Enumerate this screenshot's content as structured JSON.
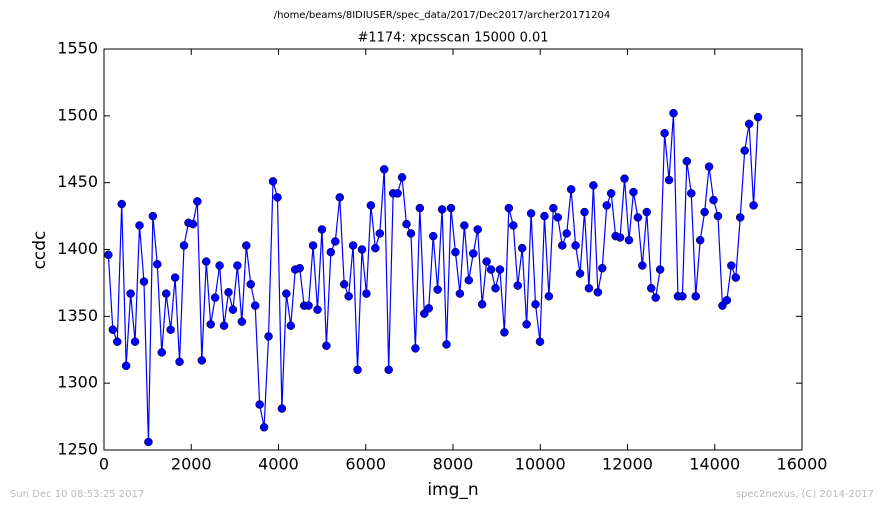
{
  "chart_data": {
    "type": "line",
    "suptitle": "/home/beams/8IDIUSER/spec_data/2017/Dec2017/archer20171204",
    "title": "#1174: xpcsscan 15000 0.01",
    "xlabel": "img_n",
    "ylabel": "ccdc",
    "footnote_left": "Sun Dec 10 08:53:25 2017",
    "footnote_right": "spec2nexus, (C) 2014-2017",
    "color": "#0000ff",
    "marker": "circle",
    "grid": false,
    "xlim": [
      0,
      16000
    ],
    "xticks": [
      0,
      2000,
      4000,
      6000,
      8000,
      10000,
      12000,
      14000,
      16000
    ],
    "ylim": [
      1250,
      1550
    ],
    "yticks": [
      1250,
      1300,
      1350,
      1400,
      1450,
      1500,
      1550
    ],
    "x": [
      100,
      202,
      304,
      406,
      508,
      610,
      712,
      814,
      916,
      1018,
      1120,
      1222,
      1324,
      1426,
      1528,
      1630,
      1732,
      1834,
      1936,
      2038,
      2140,
      2242,
      2344,
      2446,
      2548,
      2650,
      2752,
      2854,
      2956,
      3058,
      3160,
      3262,
      3364,
      3466,
      3568,
      3670,
      3772,
      3874,
      3976,
      4078,
      4180,
      4282,
      4384,
      4486,
      4588,
      4690,
      4792,
      4894,
      4996,
      5098,
      5200,
      5302,
      5404,
      5506,
      5608,
      5710,
      5812,
      5914,
      6016,
      6118,
      6220,
      6322,
      6424,
      6526,
      6628,
      6730,
      6832,
      6934,
      7036,
      7138,
      7240,
      7342,
      7444,
      7546,
      7648,
      7750,
      7852,
      7954,
      8056,
      8158,
      8260,
      8362,
      8464,
      8566,
      8668,
      8770,
      8872,
      8974,
      9076,
      9178,
      9280,
      9382,
      9484,
      9586,
      9688,
      9790,
      9892,
      9994,
      10096,
      10198,
      10300,
      10402,
      10504,
      10606,
      10708,
      10810,
      10912,
      11014,
      11116,
      11218,
      11320,
      11422,
      11524,
      11626,
      11728,
      11830,
      11932,
      12034,
      12136,
      12238,
      12340,
      12442,
      12544,
      12646,
      12748,
      12850,
      12952,
      13054,
      13156,
      13258,
      13360,
      13462,
      13564,
      13666,
      13768,
      13870,
      13972,
      14074,
      14176,
      14278,
      14380,
      14482,
      14584,
      14686,
      14788,
      14890,
      14992
    ],
    "values": [
      1396,
      1340,
      1331,
      1434,
      1313,
      1367,
      1331,
      1418,
      1376,
      1256,
      1425,
      1389,
      1323,
      1367,
      1340,
      1379,
      1316,
      1403,
      1420,
      1419,
      1436,
      1317,
      1391,
      1344,
      1364,
      1388,
      1343,
      1368,
      1355,
      1388,
      1346,
      1403,
      1374,
      1358,
      1284,
      1267,
      1335,
      1451,
      1439,
      1281,
      1367,
      1343,
      1385,
      1386,
      1358,
      1358,
      1403,
      1355,
      1415,
      1328,
      1398,
      1406,
      1439,
      1374,
      1365,
      1403,
      1310,
      1400,
      1367,
      1433,
      1401,
      1412,
      1460,
      1310,
      1442,
      1442,
      1454,
      1419,
      1412,
      1326,
      1431,
      1352,
      1356,
      1410,
      1370,
      1430,
      1329,
      1431,
      1398,
      1367,
      1418,
      1377,
      1397,
      1415,
      1359,
      1391,
      1385,
      1371,
      1385,
      1338,
      1431,
      1418,
      1373,
      1401,
      1344,
      1427,
      1359,
      1331,
      1425,
      1365,
      1431,
      1424,
      1403,
      1412,
      1445,
      1403,
      1382,
      1428,
      1371,
      1448,
      1368,
      1386,
      1433,
      1442,
      1410,
      1409,
      1453,
      1407,
      1443,
      1424,
      1388,
      1428,
      1371,
      1364,
      1385,
      1487,
      1452,
      1502,
      1365,
      1365,
      1466,
      1442,
      1365,
      1407,
      1428,
      1462,
      1437,
      1425,
      1358,
      1362,
      1388,
      1379,
      1424,
      1474,
      1494,
      1433,
      1499
    ]
  }
}
